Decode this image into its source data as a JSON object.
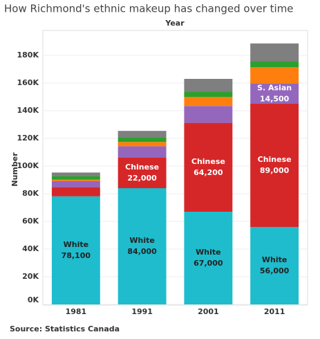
{
  "chart_data": {
    "type": "stacked_bar",
    "title": "How Richmond's ethnic makeup has changed over time",
    "x_label": "Year",
    "y_label": "Number",
    "source": "Source: Statistics Canada",
    "categories": [
      "1981",
      "1991",
      "2001",
      "2011"
    ],
    "series": [
      {
        "name": "White",
        "color": "#1ebccd",
        "label_color": "#222222",
        "values": [
          78100,
          84000,
          67000,
          56000
        ],
        "value_labels": [
          "78,100",
          "84,000",
          "67,000",
          "56,000"
        ]
      },
      {
        "name": "Chinese",
        "color": "#d62728",
        "label_color": "#ffffff",
        "values": [
          6600,
          22000,
          64200,
          89000
        ],
        "value_labels": [
          null,
          "22,000",
          "64,200",
          "89,000"
        ]
      },
      {
        "name": "S. Asian",
        "color": "#9467bd",
        "label_color": "#ffffff",
        "values": [
          4500,
          8300,
          12200,
          14500
        ],
        "value_labels": [
          null,
          null,
          null,
          "14,500"
        ]
      },
      {
        "color": "#ff7f0e",
        "values": [
          1000,
          3100,
          6600,
          12000
        ]
      },
      {
        "color": "#2ca02c",
        "values": [
          2500,
          3500,
          3500,
          4000
        ]
      },
      {
        "color": "#7f7f7f",
        "values": [
          2600,
          4500,
          9500,
          13100
        ]
      }
    ],
    "ylim": [
      0,
      198000
    ],
    "yticks": [
      {
        "value": 0,
        "label": "0K"
      },
      {
        "value": 20000,
        "label": "20K"
      },
      {
        "value": 40000,
        "label": "40K"
      },
      {
        "value": 60000,
        "label": "60K"
      },
      {
        "value": 80000,
        "label": "80K"
      },
      {
        "value": 100000,
        "label": "100K"
      },
      {
        "value": 120000,
        "label": "120K"
      },
      {
        "value": 140000,
        "label": "140K"
      },
      {
        "value": 160000,
        "label": "160K"
      },
      {
        "value": 180000,
        "label": "180K"
      }
    ],
    "grid": true
  }
}
